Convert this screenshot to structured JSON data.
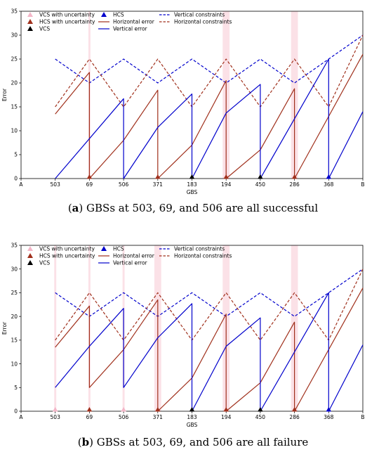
{
  "chart_data": [
    {
      "type": "line",
      "caption_label": "a",
      "caption_text": "GBSs at 503, 69, and 506 are all successful",
      "xlabel": "GBS",
      "ylabel": "Error",
      "ylim": [
        0,
        35
      ],
      "yticks": [
        0,
        5,
        10,
        15,
        20,
        25,
        30,
        35
      ],
      "categories": [
        "A",
        "503",
        "69",
        "506",
        "371",
        "183",
        "194",
        "450",
        "286",
        "368",
        "B"
      ],
      "grid": false,
      "legend": {
        "placement": "top-left",
        "entries": [
          {
            "label": "VCS with uncertainty",
            "kind": "marker",
            "color": "#f4b6c8"
          },
          {
            "label": "HCS with uncertainty",
            "kind": "marker",
            "color": "#a0301c"
          },
          {
            "label": "VCS",
            "kind": "marker",
            "color": "#000000"
          },
          {
            "label": "HCS",
            "kind": "marker",
            "color": "#0000cc"
          },
          {
            "label": "Horizontal error",
            "kind": "line",
            "color": "#a0301c"
          },
          {
            "label": "Vertical error",
            "kind": "line",
            "color": "#0000cc"
          },
          {
            "label": "Vertical constraints",
            "kind": "dash",
            "color": "#0000cc"
          },
          {
            "label": "Horizontal constraints",
            "kind": "dash",
            "color": "#a0301c"
          }
        ]
      },
      "series": [
        {
          "name": "Vertical constraints",
          "color": "#0000cc",
          "style": "dash",
          "points": [
            [
              1,
              25
            ],
            [
              2,
              20
            ],
            [
              3,
              25
            ],
            [
              4,
              20
            ],
            [
              5,
              25
            ],
            [
              6,
              20
            ],
            [
              7,
              25
            ],
            [
              8,
              20
            ],
            [
              9,
              25
            ],
            [
              10,
              30
            ]
          ]
        },
        {
          "name": "Horizontal constraints",
          "color": "#a0301c",
          "style": "dash",
          "points": [
            [
              1,
              15
            ],
            [
              2,
              25
            ],
            [
              3,
              15
            ],
            [
              4,
              25
            ],
            [
              5,
              15
            ],
            [
              6,
              25
            ],
            [
              7,
              15
            ],
            [
              8,
              25
            ],
            [
              9,
              15
            ],
            [
              10,
              30
            ]
          ]
        },
        {
          "name": "Horizontal error",
          "color": "#a0301c",
          "style": "solid",
          "points": [
            [
              1,
              13.5
            ],
            [
              2,
              22.2
            ],
            [
              2,
              0
            ],
            [
              3,
              8
            ],
            [
              4,
              18.5
            ],
            [
              4,
              0
            ],
            [
              5,
              7
            ],
            [
              6,
              20.5
            ],
            [
              6,
              0
            ],
            [
              7,
              6
            ],
            [
              8,
              18.8
            ],
            [
              8,
              0
            ],
            [
              10,
              26
            ]
          ]
        },
        {
          "name": "Vertical error",
          "color": "#0000cc",
          "style": "solid",
          "points": [
            [
              1,
              0
            ],
            [
              3,
              16.7
            ],
            [
              3,
              0
            ],
            [
              4,
              10.7
            ],
            [
              5,
              17.7
            ],
            [
              5,
              0
            ],
            [
              6,
              13.7
            ],
            [
              7,
              19.7
            ],
            [
              7,
              0
            ],
            [
              9,
              25
            ],
            [
              9,
              0
            ],
            [
              10,
              14
            ]
          ]
        }
      ],
      "bands": [
        [
          1.97,
          2.03
        ],
        [
          5.9,
          6.1
        ],
        [
          7.9,
          8.1
        ]
      ],
      "markers": [
        {
          "x": 2,
          "color": "#a0301c"
        },
        {
          "x": 4,
          "color": "#a0301c"
        },
        {
          "x": 5,
          "color": "#000000"
        },
        {
          "x": 6,
          "color": "#a0301c"
        },
        {
          "x": 7,
          "color": "#000000"
        },
        {
          "x": 8,
          "color": "#a0301c"
        },
        {
          "x": 9,
          "color": "#0000cc"
        }
      ]
    },
    {
      "type": "line",
      "caption_label": "b",
      "caption_text": "GBSs at 503, 69, and 506 are all failure",
      "xlabel": "GBS",
      "ylabel": "Error",
      "ylim": [
        0,
        35
      ],
      "yticks": [
        0,
        5,
        10,
        15,
        20,
        25,
        30,
        35
      ],
      "categories": [
        "A",
        "503",
        "69",
        "506",
        "371",
        "183",
        "194",
        "450",
        "286",
        "368",
        "B"
      ],
      "grid": false,
      "legend": {
        "placement": "top-left",
        "entries": [
          {
            "label": "VCS with uncertainty",
            "kind": "marker",
            "color": "#f4b6c8"
          },
          {
            "label": "HCS with uncertainty",
            "kind": "marker",
            "color": "#a0301c"
          },
          {
            "label": "VCS",
            "kind": "marker",
            "color": "#000000"
          },
          {
            "label": "HCS",
            "kind": "marker",
            "color": "#0000cc"
          },
          {
            "label": "Horizontal error",
            "kind": "line",
            "color": "#a0301c"
          },
          {
            "label": "Vertical error",
            "kind": "line",
            "color": "#0000cc"
          },
          {
            "label": "Vertical constraints",
            "kind": "dash",
            "color": "#0000cc"
          },
          {
            "label": "Horizontal constraints",
            "kind": "dash",
            "color": "#a0301c"
          }
        ]
      },
      "series": [
        {
          "name": "Vertical constraints",
          "color": "#0000cc",
          "style": "dash",
          "points": [
            [
              1,
              25
            ],
            [
              2,
              20
            ],
            [
              3,
              25
            ],
            [
              4,
              20
            ],
            [
              5,
              25
            ],
            [
              6,
              20
            ],
            [
              7,
              25
            ],
            [
              8,
              20
            ],
            [
              9,
              25
            ],
            [
              10,
              30
            ]
          ]
        },
        {
          "name": "Horizontal constraints",
          "color": "#a0301c",
          "style": "dash",
          "points": [
            [
              1,
              15
            ],
            [
              2,
              25
            ],
            [
              3,
              15
            ],
            [
              4,
              25
            ],
            [
              5,
              15
            ],
            [
              6,
              25
            ],
            [
              7,
              15
            ],
            [
              8,
              25
            ],
            [
              9,
              15
            ],
            [
              10,
              30
            ]
          ]
        },
        {
          "name": "Horizontal error",
          "color": "#a0301c",
          "style": "solid",
          "points": [
            [
              1,
              13.5
            ],
            [
              2,
              22.2
            ],
            [
              2,
              5
            ],
            [
              3,
              13
            ],
            [
              4,
              23.5
            ],
            [
              4,
              0
            ],
            [
              5,
              7
            ],
            [
              6,
              20.5
            ],
            [
              6,
              0
            ],
            [
              7,
              6
            ],
            [
              8,
              18.8
            ],
            [
              8,
              0
            ],
            [
              10,
              26
            ]
          ]
        },
        {
          "name": "Vertical error",
          "color": "#0000cc",
          "style": "solid",
          "points": [
            [
              1,
              5
            ],
            [
              2,
              13.7
            ],
            [
              3,
              21.7
            ],
            [
              3,
              5
            ],
            [
              4,
              15.5
            ],
            [
              5,
              22.7
            ],
            [
              5,
              0
            ],
            [
              6,
              13.7
            ],
            [
              7,
              19.7
            ],
            [
              7,
              0
            ],
            [
              9,
              25
            ],
            [
              9,
              0
            ],
            [
              10,
              14
            ]
          ]
        }
      ],
      "bands": [
        [
          0.97,
          1.03
        ],
        [
          1.97,
          2.03
        ],
        [
          2.97,
          3.03
        ],
        [
          3.9,
          4.1
        ],
        [
          5.9,
          6.1
        ],
        [
          7.9,
          8.1
        ]
      ],
      "markers": [
        {
          "x": 1,
          "color": "#f4b6c8"
        },
        {
          "x": 2,
          "color": "#a0301c"
        },
        {
          "x": 3,
          "color": "#f4b6c8"
        },
        {
          "x": 4,
          "color": "#a0301c"
        },
        {
          "x": 5,
          "color": "#000000"
        },
        {
          "x": 6,
          "color": "#a0301c"
        },
        {
          "x": 7,
          "color": "#000000"
        },
        {
          "x": 8,
          "color": "#a0301c"
        },
        {
          "x": 9,
          "color": "#0000cc"
        }
      ]
    }
  ]
}
